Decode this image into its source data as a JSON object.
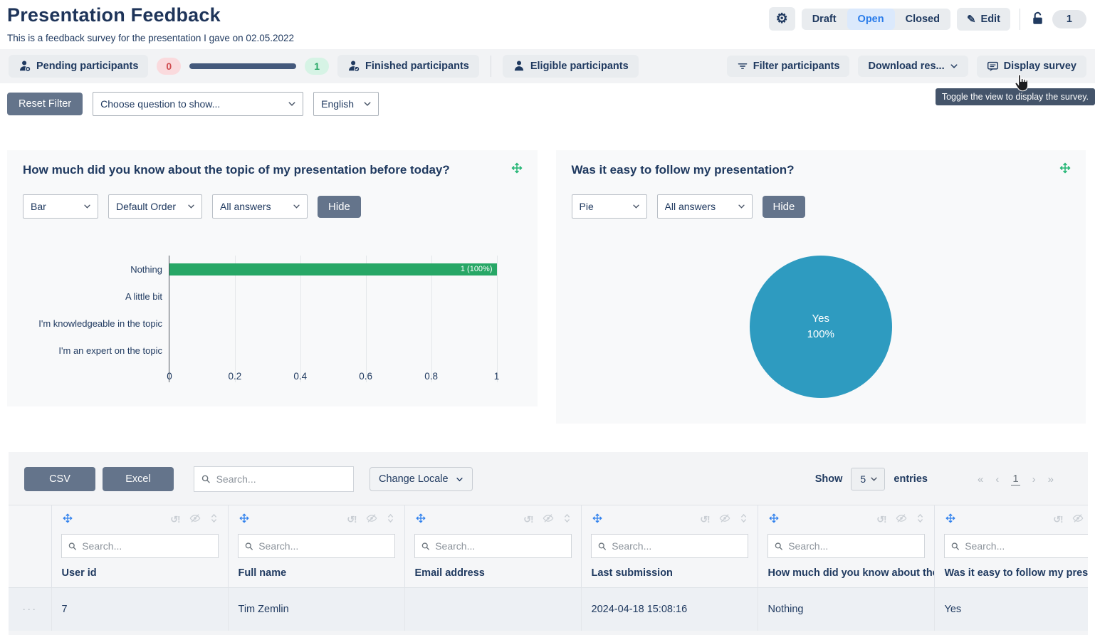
{
  "header": {
    "title": "Presentation Feedback",
    "subtitle": "This is a feedback survey for the presentation I gave on 02.05.2022",
    "status_tabs": [
      {
        "label": "Draft",
        "active": false
      },
      {
        "label": "Open",
        "active": true
      },
      {
        "label": "Closed",
        "active": false
      }
    ],
    "edit_label": "Edit",
    "count_badge": "1"
  },
  "participants_bar": {
    "pending_label": "Pending participants",
    "pending_count": "0",
    "finished_count": "1",
    "finished_label": "Finished participants",
    "eligible_label": "Eligible participants",
    "filter_label": "Filter participants",
    "download_label": "Download res...",
    "display_label": "Display survey",
    "tooltip": "Toggle the view to display the survey."
  },
  "filter_row": {
    "reset_label": "Reset Filter",
    "question_select": "Choose question to show...",
    "language_select": "English"
  },
  "chart_data": [
    {
      "type": "bar",
      "orientation": "horizontal",
      "title": "How much did you know about the topic of my presentation before today?",
      "chart_type_select": "Bar",
      "order_select": "Default Order",
      "answers_select": "All answers",
      "hide_label": "Hide",
      "categories": [
        "Nothing",
        "A little bit",
        "I'm knowledgeable in the topic",
        "I'm an expert on the topic"
      ],
      "values": [
        1,
        0,
        0,
        0
      ],
      "bar_labels": [
        "1 (100%)",
        "",
        "",
        ""
      ],
      "xlim": [
        0,
        1
      ],
      "xticks": [
        "0",
        "0.2",
        "0.4",
        "0.6",
        "0.8",
        "1"
      ],
      "bar_color": "#27a766",
      "grid": true,
      "legend": false
    },
    {
      "type": "pie",
      "title": "Was it easy to follow my presentation?",
      "chart_type_select": "Pie",
      "answers_select": "All answers",
      "hide_label": "Hide",
      "labels": [
        "Yes"
      ],
      "values": [
        100
      ],
      "value_labels": [
        "100%"
      ],
      "colors": [
        "#2e9bc0"
      ],
      "legend": false
    }
  ],
  "table": {
    "export_csv": "CSV",
    "export_excel": "Excel",
    "search_placeholder": "Search...",
    "change_locale_label": "Change Locale",
    "show_label": "Show",
    "page_size": "5",
    "entries_label": "entries",
    "current_page": "1",
    "column_search_placeholder": "Search...",
    "columns": [
      "User id",
      "Full name",
      "Email address",
      "Last submission",
      "How much did you know about the topic of my presentation before today?",
      "Was it easy to follow my presentation?"
    ],
    "rows": [
      [
        "7",
        "Tim Zemlin",
        "",
        "2024-04-18 15:08:16",
        "Nothing",
        "Yes"
      ]
    ]
  },
  "icons": {
    "pagination_first": "«",
    "pagination_prev": "‹",
    "pagination_next": "›",
    "pagination_last": "»",
    "row_expander": "···",
    "column_reset": "↺!"
  }
}
